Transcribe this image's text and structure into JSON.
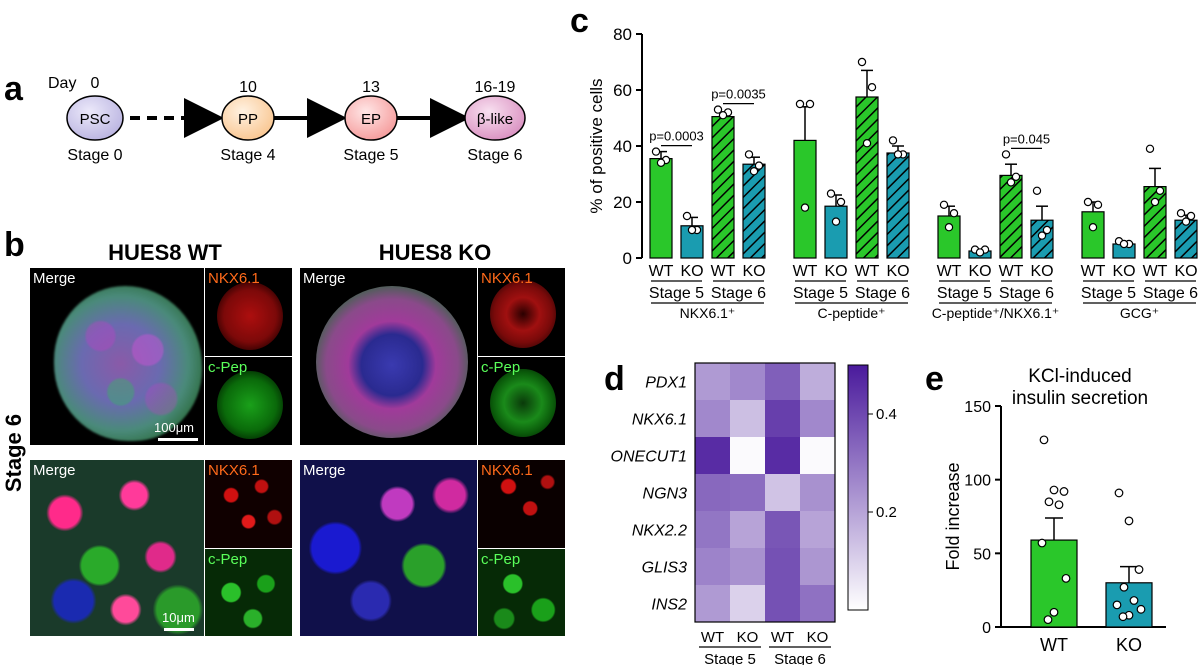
{
  "panels": {
    "a": "a",
    "b": "b",
    "c": "c",
    "d": "d",
    "e": "e"
  },
  "panel_a": {
    "day_label": "Day",
    "steps": [
      {
        "day": "0",
        "node": "PSC",
        "stage": "Stage 0",
        "color": "#b9b3e0"
      },
      {
        "day": "10",
        "node": "PP",
        "stage": "Stage 4",
        "color": "#f9c58f"
      },
      {
        "day": "13",
        "node": "EP",
        "stage": "Stage 5",
        "color": "#f59a9a"
      },
      {
        "day": "16-19",
        "node": "β-like",
        "stage": "Stage 6",
        "color": "#d98fc0"
      }
    ]
  },
  "panel_b": {
    "col_titles": [
      "HUES8 WT",
      "HUES8 KO"
    ],
    "row_label": "Stage 6",
    "merge": "Merge",
    "nkx": "NKX6.1",
    "cpep": "c-Pep",
    "scale_top": "100μm",
    "scale_bottom": "10μm"
  },
  "chart_data": [
    {
      "type": "bar",
      "panel": "c",
      "ylabel": "% of positive cells",
      "ylim": [
        0,
        80
      ],
      "yticks": [
        0,
        20,
        40,
        60,
        80
      ],
      "colors": {
        "WT": "#2ac72a",
        "KO": "#1a9cb0"
      },
      "groups": [
        {
          "marker": "NKX6.1⁺",
          "bars": [
            {
              "genotype": "WT",
              "stage": "Stage 5",
              "mean": 35.5,
              "sem": 2.5,
              "points": [
                38,
                35,
                34
              ],
              "hatched": false
            },
            {
              "genotype": "KO",
              "stage": "Stage 5",
              "mean": 11.5,
              "sem": 3,
              "points": [
                15,
                10,
                10
              ],
              "hatched": false
            },
            {
              "genotype": "WT",
              "stage": "Stage 6",
              "mean": 50.5,
              "sem": 1.5,
              "points": [
                53,
                52,
                51
              ],
              "hatched": true
            },
            {
              "genotype": "KO",
              "stage": "Stage 6",
              "mean": 33.5,
              "sem": 2.5,
              "points": [
                37,
                33,
                31
              ],
              "hatched": true
            }
          ],
          "pvalues": [
            {
              "text": "p=0.0003",
              "from": 0,
              "to": 1
            },
            {
              "text": "p=0.0035",
              "from": 2,
              "to": 3
            }
          ]
        },
        {
          "marker": "C-peptide⁺",
          "bars": [
            {
              "genotype": "WT",
              "stage": "Stage 5",
              "mean": 42,
              "sem": 12,
              "points": [
                55,
                55,
                18
              ],
              "hatched": false
            },
            {
              "genotype": "KO",
              "stage": "Stage 5",
              "mean": 18.5,
              "sem": 4,
              "points": [
                23,
                20,
                13
              ],
              "hatched": false
            },
            {
              "genotype": "WT",
              "stage": "Stage 6",
              "mean": 57.5,
              "sem": 9.5,
              "points": [
                70,
                61,
                41
              ],
              "hatched": true
            },
            {
              "genotype": "KO",
              "stage": "Stage 6",
              "mean": 37.5,
              "sem": 2.5,
              "points": [
                42,
                37,
                37
              ],
              "hatched": true
            }
          ],
          "pvalues": []
        },
        {
          "marker": "C-peptide⁺/NKX6.1⁺",
          "bars": [
            {
              "genotype": "WT",
              "stage": "Stage 5",
              "mean": 15,
              "sem": 3.5,
              "points": [
                19,
                16,
                11
              ],
              "hatched": false
            },
            {
              "genotype": "KO",
              "stage": "Stage 5",
              "mean": 2.5,
              "sem": 0.6,
              "points": [
                3,
                3,
                2
              ],
              "hatched": false
            },
            {
              "genotype": "WT",
              "stage": "Stage 6",
              "mean": 29.5,
              "sem": 4,
              "points": [
                37,
                29,
                27
              ],
              "hatched": true
            },
            {
              "genotype": "KO",
              "stage": "Stage 6",
              "mean": 13.5,
              "sem": 5,
              "points": [
                24,
                10,
                8
              ],
              "hatched": true
            }
          ],
          "pvalues": [
            {
              "text": "p=0.045",
              "from": 2,
              "to": 3
            }
          ]
        },
        {
          "marker": "GCG⁺",
          "bars": [
            {
              "genotype": "WT",
              "stage": "Stage 5",
              "mean": 16.5,
              "sem": 3.5,
              "points": [
                20,
                19,
                11
              ],
              "hatched": false
            },
            {
              "genotype": "KO",
              "stage": "Stage 5",
              "mean": 5,
              "sem": 0.7,
              "points": [
                6,
                5,
                5
              ],
              "hatched": false
            },
            {
              "genotype": "WT",
              "stage": "Stage 6",
              "mean": 25.5,
              "sem": 6.5,
              "points": [
                39,
                24,
                20
              ],
              "hatched": true
            },
            {
              "genotype": "KO",
              "stage": "Stage 6",
              "mean": 13.5,
              "sem": 1.8,
              "points": [
                16,
                15,
                13
              ],
              "hatched": true
            }
          ],
          "pvalues": []
        }
      ],
      "tick_labels": {
        "WT": "WT",
        "KO": "KO",
        "stage5": "Stage 5",
        "stage6": "Stage 6"
      }
    },
    {
      "type": "heatmap",
      "panel": "d",
      "rows": [
        "PDX1",
        "NKX6.1",
        "ONECUT1",
        "NGN3",
        "NKX2.2",
        "GLIS3",
        "INS2"
      ],
      "columns": [
        {
          "genotype": "WT",
          "stage": "Stage 5"
        },
        {
          "genotype": "KO",
          "stage": "Stage 5"
        },
        {
          "genotype": "WT",
          "stage": "Stage 6"
        },
        {
          "genotype": "KO",
          "stage": "Stage 6"
        }
      ],
      "values": [
        [
          0.22,
          0.26,
          0.35,
          0.18
        ],
        [
          0.26,
          0.14,
          0.42,
          0.26
        ],
        [
          0.46,
          0.01,
          0.46,
          0.01
        ],
        [
          0.33,
          0.32,
          0.13,
          0.24
        ],
        [
          0.3,
          0.2,
          0.37,
          0.2
        ],
        [
          0.27,
          0.24,
          0.38,
          0.23
        ],
        [
          0.22,
          0.1,
          0.38,
          0.31
        ]
      ],
      "colorbar": {
        "min": 0.0,
        "max": 0.5,
        "ticks": [
          0.2,
          0.4
        ],
        "low_color": "#ffffff",
        "high_color": "#4a1a9c"
      }
    },
    {
      "type": "bar",
      "panel": "e",
      "title": "KCl-induced insulin secretion",
      "title_lines": [
        "KCl-induced",
        "insulin secretion"
      ],
      "ylabel": "Fold increase",
      "ylim": [
        0,
        150
      ],
      "yticks": [
        0,
        50,
        100,
        150
      ],
      "categories": [
        "WT",
        "KO"
      ],
      "bars": [
        {
          "label": "WT",
          "mean": 59,
          "sem": 15,
          "color": "#2ac72a",
          "points": [
            127,
            93,
            92,
            85,
            83,
            57,
            33,
            10,
            5
          ]
        },
        {
          "label": "KO",
          "mean": 30,
          "sem": 11,
          "color": "#1a9cb0",
          "points": [
            91,
            72,
            39,
            27,
            18,
            15,
            12,
            8,
            7
          ]
        }
      ]
    }
  ]
}
